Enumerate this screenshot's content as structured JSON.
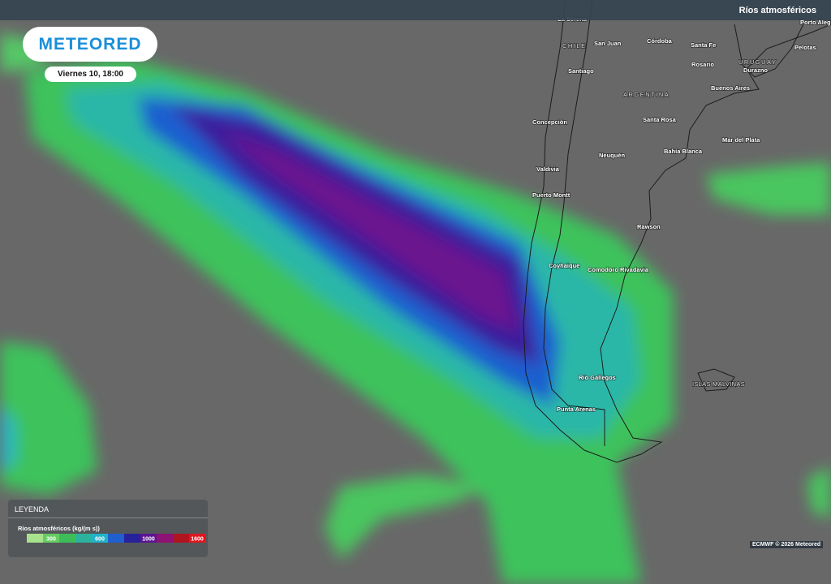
{
  "header": {
    "title": "Ríos atmosféricos"
  },
  "logo": "METEORED",
  "datetime": "Viernes 10, 18:00",
  "places": [
    "La Serena",
    "CHILE",
    "San Juan",
    "Córdoba",
    "Santa Fe",
    "Porto Alegre",
    "Pelotas",
    "URUGUAY",
    "Rosario",
    "Durazno",
    "Santiago",
    "ARGENTINA",
    "Buenos Aires",
    "Concepción",
    "Santa Rosa",
    "Mar del Plata",
    "Neuquén",
    "Bahía Blanca",
    "Valdivia",
    "Puerto Montt",
    "Rawson",
    "Coyhaique",
    "Comodoro Rivadavia",
    "Río Gallegos",
    "ISLAS MALVINAS",
    "Punta Arenas"
  ],
  "legend": {
    "title": "LEYENDA",
    "variable": "Ríos atmosféricos (kg/(m s))",
    "colors": [
      "#a9e28e",
      "#66cc62",
      "#3dbd5a",
      "#2bb39e",
      "#22b3c9",
      "#1f5fcf",
      "#28219c",
      "#5c1592",
      "#8d1274",
      "#b0141f",
      "#e0161f"
    ],
    "ticks": [
      300,
      600,
      1000,
      1600
    ]
  },
  "credit": "ECMWF © 2026 Meteored"
}
